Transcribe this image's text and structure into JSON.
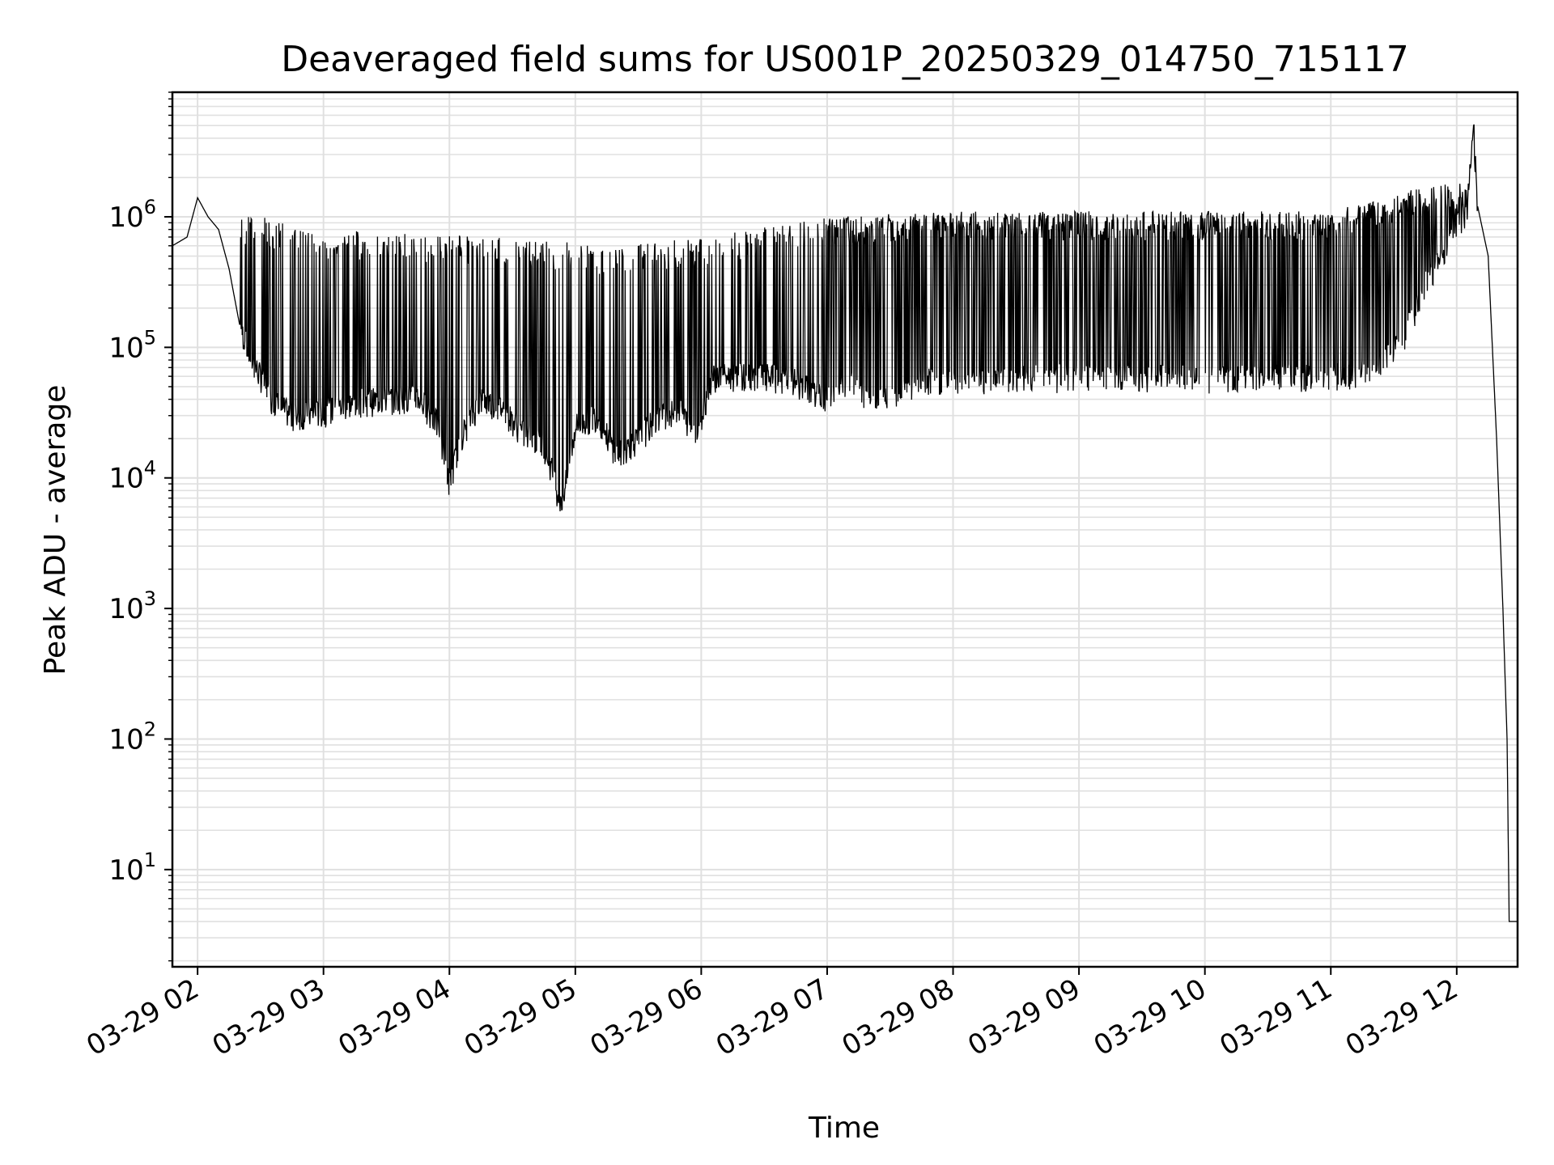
{
  "chart_data": {
    "type": "line",
    "title": "Deaveraged field sums for US001P_20250329_014750_715117",
    "xlabel": "Time",
    "ylabel": "Peak ADU - average",
    "yscale": "log",
    "grid": "both (major and minor)",
    "line_color": "#000000",
    "grid_color": "#e0e0e0",
    "xlim": [
      "03-29 01:48",
      "03-29 12:29"
    ],
    "ylim": [
      1.8,
      9000000
    ],
    "x_ticks": [
      "03-29 02",
      "03-29 03",
      "03-29 04",
      "03-29 05",
      "03-29 06",
      "03-29 07",
      "03-29 08",
      "03-29 09",
      "03-29 10",
      "03-29 11",
      "03-29 12"
    ],
    "y_ticks": [
      {
        "base": "10",
        "exp": "1",
        "value": 10
      },
      {
        "base": "10",
        "exp": "2",
        "value": 100
      },
      {
        "base": "10",
        "exp": "3",
        "value": 1000
      },
      {
        "base": "10",
        "exp": "4",
        "value": 10000
      },
      {
        "base": "10",
        "exp": "5",
        "value": 100000
      },
      {
        "base": "10",
        "exp": "6",
        "value": 1000000
      }
    ],
    "series": [
      {
        "values": [
          [
            "03-29 01:48",
            600000
          ],
          [
            "03-29 01:55",
            700000
          ],
          [
            "03-29 02:00",
            1400000
          ],
          [
            "03-29 02:05",
            1000000
          ],
          [
            "03-29 02:10",
            800000
          ],
          [
            "03-29 02:15",
            400000
          ],
          [
            "03-29 02:20",
            150000
          ],
          [
            "03-29 02:25",
            85000
          ],
          [
            "03-29 02:30",
            60000
          ],
          [
            "03-29 02:35",
            40000
          ],
          [
            "03-29 02:45",
            30000
          ],
          [
            "03-29 03:00",
            32000
          ],
          [
            "03-29 03:15",
            38000
          ],
          [
            "03-29 03:30",
            40000
          ],
          [
            "03-29 03:45",
            42000
          ],
          [
            "03-29 03:55",
            25000
          ],
          [
            "03-29 04:00",
            9000
          ],
          [
            "03-29 04:05",
            20000
          ],
          [
            "03-29 04:15",
            40000
          ],
          [
            "03-29 04:25",
            35000
          ],
          [
            "03-29 04:35",
            22000
          ],
          [
            "03-29 04:45",
            18000
          ],
          [
            "03-29 04:50",
            10000
          ],
          [
            "03-29 04:53",
            6000
          ],
          [
            "03-29 04:57",
            12000
          ],
          [
            "03-29 05:00",
            25000
          ],
          [
            "03-29 05:10",
            30000
          ],
          [
            "03-29 05:20",
            15000
          ],
          [
            "03-29 05:30",
            20000
          ],
          [
            "03-29 05:40",
            30000
          ],
          [
            "03-29 05:50",
            32000
          ],
          [
            "03-29 05:58",
            22000
          ],
          [
            "03-29 06:05",
            60000
          ],
          [
            "03-29 06:15",
            60000
          ],
          [
            "03-29 06:30",
            60000
          ],
          [
            "03-29 06:45",
            55000
          ],
          [
            "03-29 07:00",
            40000
          ],
          [
            "03-29 07:10",
            55000
          ],
          [
            "03-29 07:20",
            38000
          ],
          [
            "03-29 07:30",
            42000
          ],
          [
            "03-29 07:45",
            55000
          ],
          [
            "03-29 08:00",
            57000
          ],
          [
            "03-29 08:30",
            58000
          ],
          [
            "03-29 09:00",
            60000
          ],
          [
            "03-29 09:30",
            60000
          ],
          [
            "03-29 10:00",
            58000
          ],
          [
            "03-29 10:30",
            60000
          ],
          [
            "03-29 11:00",
            60000
          ],
          [
            "03-29 11:20",
            65000
          ],
          [
            "03-29 11:35",
            120000
          ],
          [
            "03-29 11:45",
            300000
          ],
          [
            "03-29 11:55",
            600000
          ],
          [
            "03-29 12:00",
            900000
          ],
          [
            "03-29 12:05",
            1100000
          ],
          [
            "03-29 12:08",
            5000000
          ],
          [
            "03-29 12:10",
            1200000
          ],
          [
            "03-29 12:15",
            500000
          ],
          [
            "03-29 12:19",
            20000
          ],
          [
            "03-29 12:22",
            1000
          ],
          [
            "03-29 12:24",
            100
          ],
          [
            "03-29 12:25",
            4
          ],
          [
            "03-29 12:29",
            4
          ]
        ],
        "spikes_max": [
          [
            "03-29 02:30",
            1000000
          ],
          [
            "03-29 03:00",
            800000
          ],
          [
            "03-29 04:30",
            700000
          ],
          [
            "03-29 05:15",
            600000
          ],
          [
            "03-29 06:00",
            700000
          ],
          [
            "03-29 07:00",
            1000000
          ],
          [
            "03-29 08:00",
            1100000
          ],
          [
            "03-29 09:00",
            1100000
          ],
          [
            "03-29 10:00",
            1100000
          ],
          [
            "03-29 11:00",
            1100000
          ],
          [
            "03-29 11:50",
            1800000
          ]
        ]
      }
    ]
  }
}
